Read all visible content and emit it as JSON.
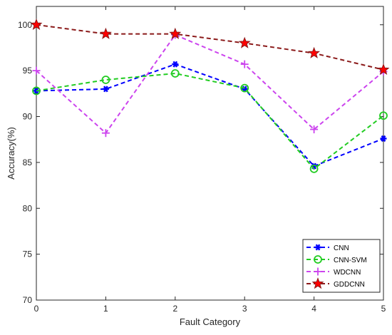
{
  "chart_data": {
    "type": "line",
    "xlabel": "Fault Category",
    "ylabel": "Accuracy(%)",
    "xlim": [
      0,
      5
    ],
    "ylim": [
      70,
      102
    ],
    "x_ticks": [
      0,
      1,
      2,
      3,
      4,
      5
    ],
    "y_ticks": [
      70,
      75,
      80,
      85,
      90,
      95,
      100
    ],
    "grid": false,
    "legend_position": "bottom-right",
    "x": [
      0,
      1,
      2,
      3,
      4,
      5
    ],
    "series": [
      {
        "name": "CNN",
        "values": [
          92.8,
          93.0,
          95.7,
          93.0,
          84.6,
          87.6
        ],
        "color": "#0000ff",
        "marker": "asterisk"
      },
      {
        "name": "CNN-SVM",
        "values": [
          92.8,
          94.0,
          94.7,
          93.1,
          84.3,
          90.1
        ],
        "color": "#22cc22",
        "marker": "circle"
      },
      {
        "name": "WDCNN",
        "values": [
          95.0,
          88.2,
          98.9,
          95.7,
          88.6,
          94.9
        ],
        "color": "#cc44ee",
        "marker": "plus"
      },
      {
        "name": "GDDCNN",
        "values": [
          100.0,
          99.0,
          99.0,
          98.0,
          96.9,
          95.1
        ],
        "color": "#8b1a1a",
        "marker": "star"
      }
    ]
  }
}
